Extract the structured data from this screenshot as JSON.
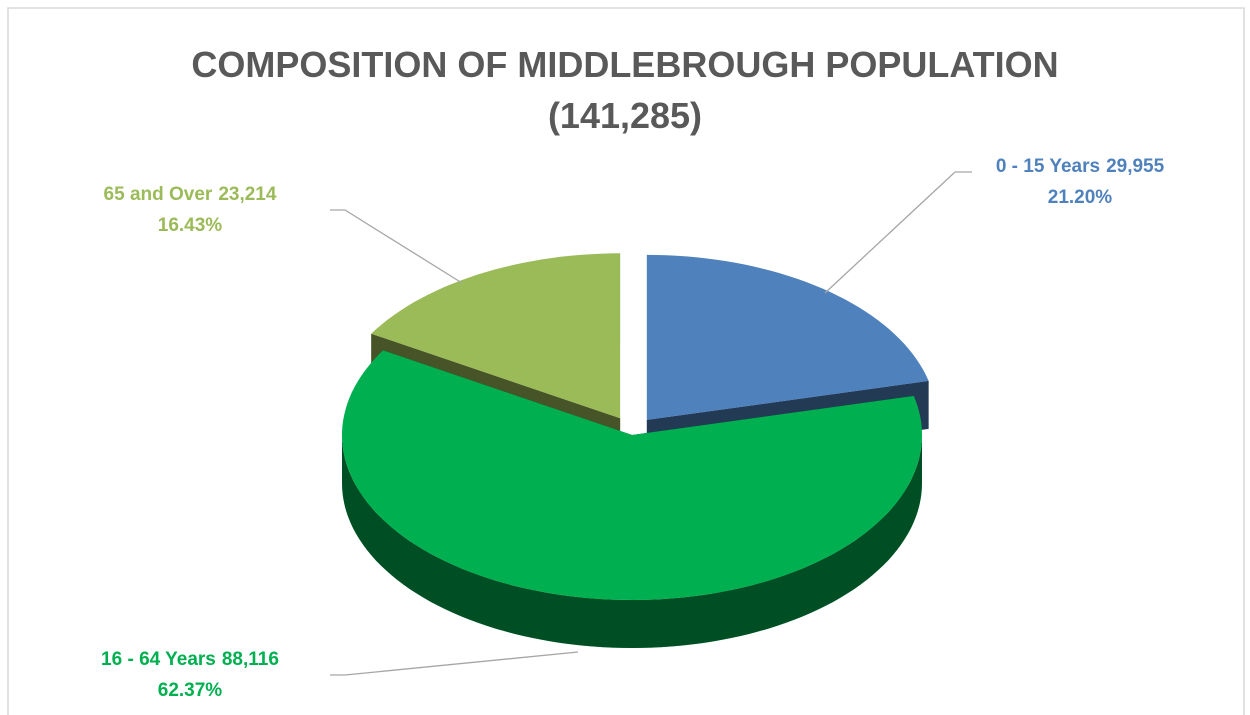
{
  "chart_data": {
    "type": "pie3d",
    "title": "COMPOSITION OF MIDDLEBROUGH POPULATION",
    "subtitle": "(141,285)",
    "categories": [
      "0 - 15 Years",
      "16 - 64 Years",
      "65 and Over"
    ],
    "values": [
      29955,
      88116,
      23214
    ],
    "value_labels": [
      "29,955",
      "88,116",
      "23,214"
    ],
    "percentages": [
      21.2,
      62.37,
      16.43
    ],
    "percentage_labels": [
      "21.20%",
      "62.37%",
      "16.43%"
    ],
    "colors": [
      "#4f81bd",
      "#00b050",
      "#9bbb59"
    ],
    "exploded": [
      true,
      false,
      true
    ]
  }
}
